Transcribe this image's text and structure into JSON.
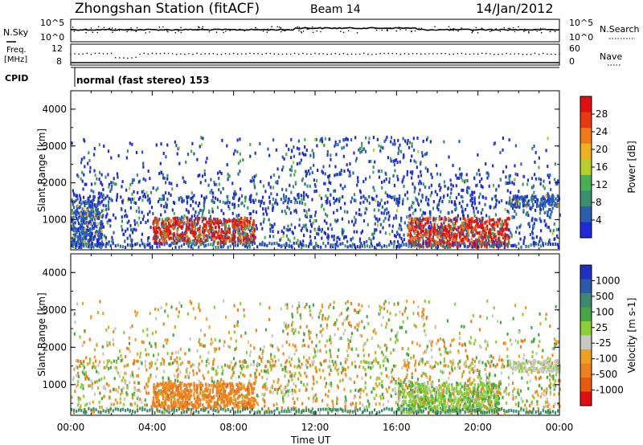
{
  "header": {
    "station": "Zhongshan Station (fitACF)",
    "beam": "Beam 14",
    "date": "14/Jan/2012"
  },
  "mini_panels": {
    "nsky_label": "N.Sky",
    "nsky_ticks": [
      "10^5",
      "10^0"
    ],
    "nsearch_label": "N.Search",
    "nsearch_ticks": [
      "10^5",
      "10^0"
    ],
    "freq_label_1": "Freq.",
    "freq_label_2": "[MHz]",
    "freq_ticks": [
      "12",
      "8"
    ],
    "nave_label": "Nave",
    "nave_ticks": [
      "60",
      "0"
    ],
    "cpid_label": "CPID",
    "cpid_value": "normal (fast stereo) 153"
  },
  "colors": {
    "power_scale": [
      "#1f2bd9",
      "#2a5fb0",
      "#3a8f6f",
      "#4aae55",
      "#b7cf2a",
      "#f0b020",
      "#f07a18",
      "#e83a10",
      "#e01010"
    ],
    "velocity_scale": [
      "#2030c0",
      "#2a5aa8",
      "#3a8a70",
      "#46a646",
      "#8bd03a",
      "#c8c8c0",
      "#f0a020",
      "#ee8020",
      "#e85a10",
      "#e01010"
    ]
  },
  "chart_data": [
    {
      "type": "heatmap",
      "title": "Power",
      "ylabel": "Slant Range [km]",
      "colorbar_label": "Power [dB]",
      "colorbar_ticks": [
        "4",
        "8",
        "12",
        "16",
        "20",
        "24",
        "28"
      ],
      "yticks": [
        "1000",
        "2000",
        "3000",
        "4000"
      ],
      "xticks": [
        "00:00",
        "04:00",
        "08:00",
        "12:00",
        "16:00",
        "20:00",
        "00:00"
      ],
      "ylim": [
        180,
        4500
      ],
      "xlim_hours": [
        0,
        24
      ],
      "features": [
        {
          "t": [
            0.0,
            1.5
          ],
          "r": [
            200,
            1500
          ],
          "level": "low"
        },
        {
          "t": [
            4.0,
            9.0
          ],
          "r": [
            300,
            1000
          ],
          "level": "high"
        },
        {
          "t": [
            16.5,
            21.5
          ],
          "r": [
            200,
            1000
          ],
          "level": "high"
        },
        {
          "t": [
            21.5,
            24.0
          ],
          "r": [
            1300,
            1600
          ],
          "level": "low"
        }
      ]
    },
    {
      "type": "heatmap",
      "title": "Velocity",
      "ylabel": "Slant Range [km]",
      "xlabel": "Time UT",
      "colorbar_label": "Velocity [m s-1]",
      "colorbar_ticks": [
        "1000",
        "500",
        "100",
        "25",
        "-25",
        "-100",
        "-500",
        "-1000"
      ],
      "yticks": [
        "1000",
        "2000",
        "3000",
        "4000"
      ],
      "xticks": [
        "00:00",
        "04:00",
        "08:00",
        "12:00",
        "16:00",
        "20:00",
        "00:00"
      ],
      "ylim": [
        180,
        4500
      ],
      "xlim_hours": [
        0,
        24
      ],
      "features": [
        {
          "t": [
            4.0,
            9.0
          ],
          "r": [
            300,
            1000
          ],
          "velocity": -150
        },
        {
          "t": [
            16.0,
            21.0
          ],
          "r": [
            200,
            1000
          ],
          "velocity": 80
        },
        {
          "t": [
            21.5,
            24.0
          ],
          "r": [
            1300,
            1600
          ],
          "velocity": 0
        }
      ]
    }
  ]
}
